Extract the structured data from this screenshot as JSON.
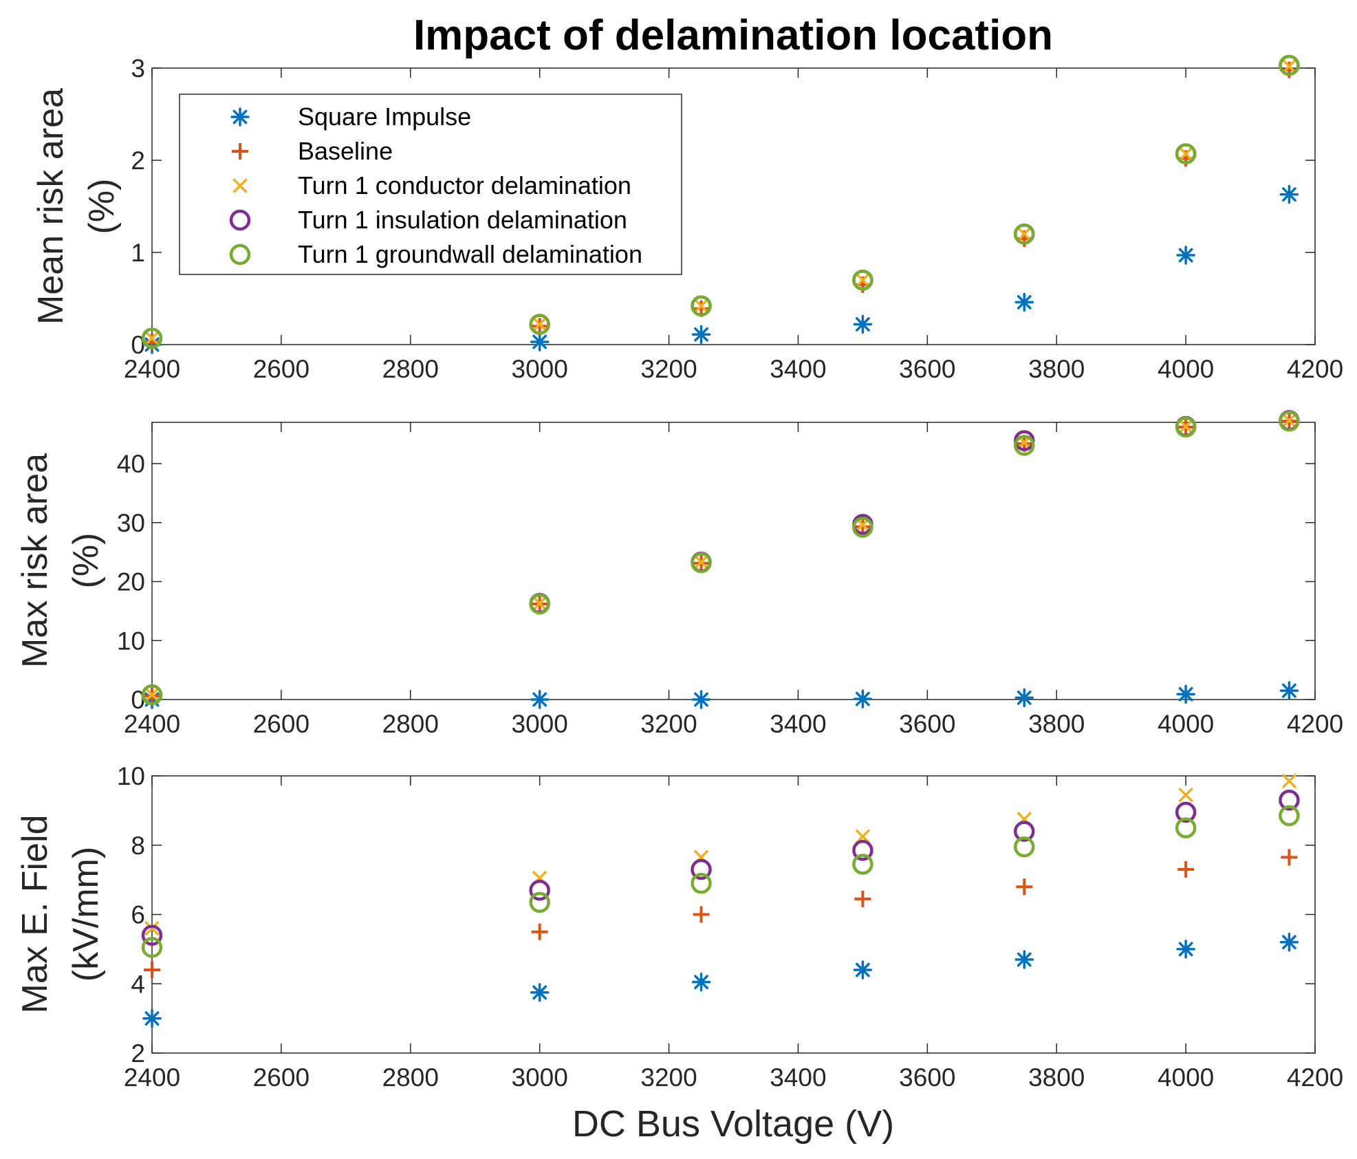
{
  "chart_data": {
    "type": "scatter",
    "title": "Impact of delamination location",
    "xlabel": "DC Bus Voltage (V)",
    "xlim": [
      2400,
      4200
    ],
    "xticks": [
      2400,
      2600,
      2800,
      3000,
      3200,
      3400,
      3600,
      3800,
      4000,
      4200
    ],
    "x": [
      2400,
      3000,
      3250,
      3500,
      3750,
      4000,
      4160
    ],
    "legend": {
      "location": "top-left",
      "shown_in": "top",
      "entries": [
        {
          "name": "Square Impulse",
          "marker": "asterisk",
          "color": "#0072BD"
        },
        {
          "name": "Baseline",
          "marker": "plus",
          "color": "#D95319"
        },
        {
          "name": "Turn 1 conductor delamination",
          "marker": "x",
          "color": "#EDB120"
        },
        {
          "name": "Turn 1 insulation delamination",
          "marker": "circle",
          "color": "#7E2F8E"
        },
        {
          "name": "Turn 1 groundwall delamination",
          "marker": "circle",
          "color": "#77AC30"
        }
      ]
    },
    "subplots": [
      {
        "id": "top",
        "ylabel": [
          "Mean risk area",
          "(%)"
        ],
        "ylim": [
          0,
          3
        ],
        "yticks": [
          0,
          1,
          2,
          3
        ],
        "series": [
          {
            "name": "Square Impulse",
            "values": [
              0.0,
              0.03,
              0.11,
              0.22,
              0.46,
              0.97,
              1.63
            ]
          },
          {
            "name": "Baseline",
            "values": [
              0.03,
              0.2,
              0.39,
              0.65,
              1.15,
              2.02,
              2.98
            ]
          },
          {
            "name": "Turn 1 conductor delamination",
            "values": [
              0.07,
              0.22,
              0.42,
              0.7,
              1.2,
              2.07,
              3.02
            ]
          },
          {
            "name": "Turn 1 insulation delamination",
            "values": [
              0.07,
              0.22,
              0.42,
              0.7,
              1.2,
              2.07,
              3.03
            ]
          },
          {
            "name": "Turn 1 groundwall delamination",
            "values": [
              0.07,
              0.22,
              0.42,
              0.7,
              1.2,
              2.07,
              3.03
            ]
          }
        ]
      },
      {
        "id": "middle",
        "ylabel": [
          "Max risk area",
          "(%)"
        ],
        "ylim": [
          0,
          47
        ],
        "yticks": [
          0,
          10,
          20,
          30,
          40
        ],
        "series": [
          {
            "name": "Square Impulse",
            "values": [
              0.0,
              0.0,
              0.0,
              0.1,
              0.3,
              0.9,
              1.5
            ]
          },
          {
            "name": "Baseline",
            "values": [
              0.6,
              16.2,
              23.1,
              29.3,
              43.4,
              46.2,
              47.2
            ]
          },
          {
            "name": "Turn 1 conductor delamination",
            "values": [
              0.8,
              16.3,
              23.3,
              29.6,
              43.6,
              46.3,
              47.3
            ]
          },
          {
            "name": "Turn 1 insulation delamination",
            "values": [
              0.8,
              16.3,
              23.3,
              29.7,
              43.9,
              46.3,
              47.3
            ]
          },
          {
            "name": "Turn 1 groundwall delamination",
            "values": [
              0.8,
              16.2,
              23.2,
              29.2,
              43.1,
              46.2,
              47.2
            ]
          }
        ]
      },
      {
        "id": "bottom",
        "ylabel": [
          "Max E. Field",
          "(kV/mm)"
        ],
        "ylim": [
          2,
          10
        ],
        "yticks": [
          2,
          4,
          6,
          8,
          10
        ],
        "series": [
          {
            "name": "Square Impulse",
            "values": [
              3.0,
              3.75,
              4.05,
              4.4,
              4.7,
              5.0,
              5.2
            ]
          },
          {
            "name": "Baseline",
            "values": [
              4.4,
              5.5,
              6.0,
              6.45,
              6.8,
              7.3,
              7.65
            ]
          },
          {
            "name": "Turn 1 conductor delamination",
            "values": [
              5.6,
              7.05,
              7.65,
              8.25,
              8.75,
              9.45,
              9.85
            ]
          },
          {
            "name": "Turn 1 insulation delamination",
            "values": [
              5.4,
              6.7,
              7.3,
              7.85,
              8.4,
              8.95,
              9.3
            ]
          },
          {
            "name": "Turn 1 groundwall delamination",
            "values": [
              5.05,
              6.35,
              6.9,
              7.45,
              7.95,
              8.5,
              8.85
            ]
          }
        ]
      }
    ]
  }
}
